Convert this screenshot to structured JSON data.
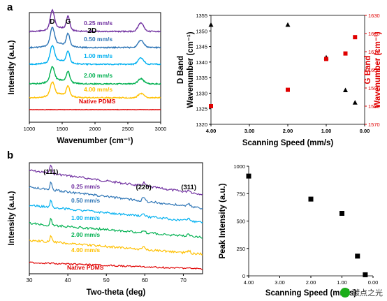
{
  "panels": [
    {
      "letter": "a"
    },
    {
      "letter": "b"
    }
  ],
  "watermark": {
    "text": "碳点之光",
    "icon": "wechat-icon"
  },
  "colors": {
    "purple": "#7030a0",
    "blue": "#2e75b6",
    "cyan": "#00b0f0",
    "green": "#00b050",
    "yellow": "#ffc000",
    "red": "#e00000"
  },
  "chart_data": [
    {
      "id": "raman",
      "type": "line",
      "xlabel": "Wavenumber (cm⁻¹)",
      "ylabel": "Intensity (a.u.)",
      "xlim": [
        1000,
        3000
      ],
      "xticks": [
        1000,
        1500,
        2000,
        2500,
        3000
      ],
      "grid": false,
      "peak_labels": [
        {
          "text": "D",
          "x": 1350
        },
        {
          "text": "G",
          "x": 1590
        },
        {
          "text": "2D",
          "x": 2700
        }
      ],
      "series": [
        {
          "name": "0.25 mm/s",
          "color": "#7030a0"
        },
        {
          "name": "0.50 mm/s",
          "color": "#2e75b6"
        },
        {
          "name": "1.00 mm/s",
          "color": "#00b0f0"
        },
        {
          "name": "2.00 mm/s",
          "color": "#00b050"
        },
        {
          "name": "4.00 mm/s",
          "color": "#ffc000"
        },
        {
          "name": "Native PDMS",
          "color": "#e00000"
        }
      ]
    },
    {
      "id": "band-positions",
      "type": "scatter",
      "xlabel": "Scanning Speed (mm/s)",
      "ylabel_left": "D Band\nWavenumber (cm⁻¹)",
      "ylabel_right": "G Band\nWavenumber (cm⁻¹)",
      "xlim": [
        4,
        0
      ],
      "xticks": [
        4.0,
        3.0,
        2.0,
        1.0,
        0.0
      ],
      "xtick_labels": [
        "4.00",
        "3.00",
        "2.00",
        "1.00",
        "0.00"
      ],
      "ylim_left": [
        1320,
        1355
      ],
      "yticks_left": [
        1320,
        1325,
        1330,
        1335,
        1340,
        1345,
        1350,
        1355
      ],
      "ylim_right": [
        1570,
        1630
      ],
      "yticks_right": [
        1570,
        1580,
        1590,
        1600,
        1610,
        1620,
        1630
      ],
      "series": [
        {
          "name": "D band",
          "axis": "left",
          "marker": "triangle",
          "color": "#000000",
          "x": [
            4.0,
            2.0,
            1.0,
            0.5,
            0.25
          ],
          "y": [
            1352,
            1352,
            1341.5,
            1331,
            1327
          ]
        },
        {
          "name": "G band",
          "axis": "right",
          "marker": "square",
          "color": "#e00000",
          "x": [
            4.0,
            2.0,
            1.0,
            0.5,
            0.25
          ],
          "y": [
            1580,
            1589,
            1606,
            1609,
            1618
          ]
        }
      ]
    },
    {
      "id": "xrd",
      "type": "line",
      "xlabel": "Two-theta (deg)",
      "ylabel": "Intensity (a.u.)",
      "xlim": [
        30,
        75
      ],
      "xticks": [
        30,
        40,
        50,
        60,
        70
      ],
      "grid": false,
      "peak_labels": [
        {
          "text": "(111)",
          "x": 35.6
        },
        {
          "text": "(220)",
          "x": 59.7
        },
        {
          "text": "(311)",
          "x": 71.4
        }
      ],
      "series": [
        {
          "name": "0.25 mm/s",
          "color": "#7030a0"
        },
        {
          "name": "0.50 mm/s",
          "color": "#2e75b6"
        },
        {
          "name": "1.00 mm/s",
          "color": "#00b0f0"
        },
        {
          "name": "2.00 mm/s",
          "color": "#00b050"
        },
        {
          "name": "4.00 mm/s",
          "color": "#ffc000"
        },
        {
          "name": "Native PDMS",
          "color": "#e00000"
        }
      ]
    },
    {
      "id": "peak-intensity",
      "type": "scatter",
      "xlabel": "Scanning Speed (mm/s)",
      "ylabel": "Peak Intensity (a.u.)",
      "xlim": [
        4,
        0
      ],
      "xticks": [
        4.0,
        3.0,
        2.0,
        1.0,
        0.0
      ],
      "xtick_labels": [
        "4.00",
        "3.00",
        "2.00",
        "1.00",
        "0.00"
      ],
      "ylim": [
        0,
        1000
      ],
      "yticks": [
        0,
        250,
        500,
        750,
        1000
      ],
      "series": [
        {
          "name": "Peak intensity",
          "marker": "square",
          "color": "#000000",
          "x": [
            4.0,
            2.0,
            1.0,
            0.5,
            0.25
          ],
          "y": [
            910,
            700,
            570,
            180,
            10
          ]
        }
      ]
    }
  ]
}
